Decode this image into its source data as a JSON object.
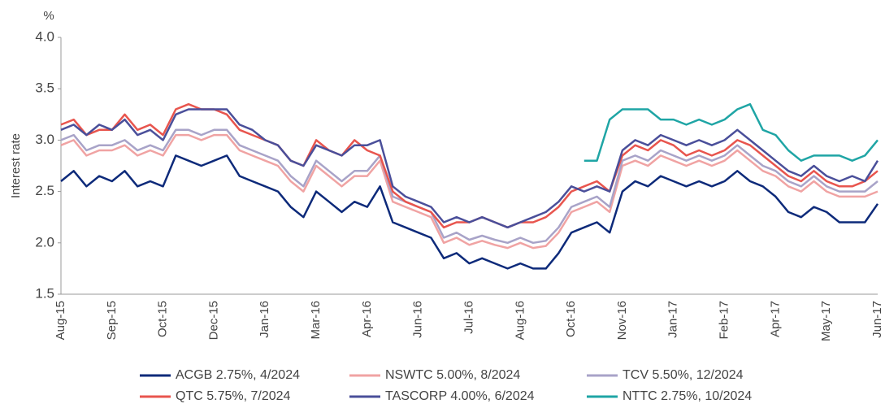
{
  "chart_data": {
    "type": "line",
    "unit": "%",
    "y_label": "Interest rate",
    "categories": [
      "Aug-15",
      null,
      null,
      null,
      "Sep-15",
      null,
      null,
      null,
      "Oct-15",
      null,
      null,
      null,
      "Dec-15",
      null,
      null,
      null,
      "Jan-16",
      null,
      null,
      null,
      "Mar-16",
      null,
      null,
      null,
      "Apr-16",
      null,
      null,
      null,
      "Jun-16",
      null,
      null,
      null,
      "Jul-16",
      null,
      null,
      null,
      "Aug-16",
      null,
      null,
      null,
      "Oct-16",
      null,
      null,
      null,
      "Nov-16",
      null,
      null,
      null,
      "Jan-17",
      null,
      null,
      null,
      "Feb-17",
      null,
      null,
      null,
      "Apr-17",
      null,
      null,
      null,
      "May-17",
      null,
      null,
      null,
      "Jun-17"
    ],
    "ylim": [
      1.5,
      4.0
    ],
    "yticks": [
      1.5,
      {
        "value": 2,
        "label": "2.0"
      },
      2.5,
      {
        "value": 3,
        "label": "3.0"
      },
      3.5,
      {
        "value": 4,
        "label": "4.0"
      }
    ],
    "series": [
      {
        "name": "ACGB 2.75%, 4/2024",
        "color": "#0d2a7a",
        "values": [
          2.6,
          2.7,
          2.55,
          2.65,
          2.6,
          2.7,
          2.55,
          2.6,
          2.55,
          2.85,
          2.8,
          2.75,
          2.8,
          2.85,
          2.65,
          2.6,
          2.55,
          2.5,
          2.35,
          2.25,
          2.5,
          2.4,
          2.3,
          2.4,
          2.35,
          2.55,
          2.2,
          2.15,
          2.1,
          2.05,
          1.85,
          1.9,
          1.8,
          1.85,
          1.8,
          1.75,
          1.8,
          1.75,
          1.75,
          1.9,
          2.1,
          2.15,
          2.2,
          2.1,
          2.5,
          2.6,
          2.55,
          2.65,
          2.6,
          2.55,
          2.6,
          2.55,
          2.6,
          2.7,
          2.6,
          2.55,
          2.45,
          2.3,
          2.25,
          2.35,
          2.3,
          2.2,
          2.2,
          2.2,
          2.38
        ]
      },
      {
        "name": "NSWTC 5.00%, 8/2024",
        "color": "#f0a3a3",
        "values": [
          2.95,
          3.0,
          2.85,
          2.9,
          2.9,
          2.95,
          2.85,
          2.9,
          2.85,
          3.05,
          3.05,
          3.0,
          3.05,
          3.05,
          2.9,
          2.85,
          2.8,
          2.75,
          2.6,
          2.5,
          2.75,
          2.65,
          2.55,
          2.65,
          2.65,
          2.8,
          2.4,
          2.35,
          2.3,
          2.25,
          2.0,
          2.05,
          1.98,
          2.02,
          1.98,
          1.95,
          2.0,
          1.95,
          1.97,
          2.1,
          2.3,
          2.35,
          2.4,
          2.3,
          2.75,
          2.8,
          2.75,
          2.85,
          2.8,
          2.75,
          2.8,
          2.75,
          2.8,
          2.9,
          2.8,
          2.7,
          2.65,
          2.55,
          2.5,
          2.6,
          2.5,
          2.45,
          2.45,
          2.45,
          2.5
        ]
      },
      {
        "name": "TCV 5.50%, 12/2024",
        "color": "#a8a3c8",
        "values": [
          3.0,
          3.05,
          2.9,
          2.95,
          2.95,
          3.0,
          2.9,
          2.95,
          2.9,
          3.1,
          3.1,
          3.05,
          3.1,
          3.1,
          2.95,
          2.9,
          2.85,
          2.8,
          2.65,
          2.55,
          2.8,
          2.7,
          2.6,
          2.7,
          2.7,
          2.85,
          2.45,
          2.4,
          2.35,
          2.3,
          2.05,
          2.1,
          2.03,
          2.07,
          2.03,
          2.0,
          2.05,
          2.0,
          2.02,
          2.15,
          2.35,
          2.4,
          2.45,
          2.35,
          2.8,
          2.85,
          2.8,
          2.9,
          2.85,
          2.8,
          2.85,
          2.8,
          2.85,
          2.95,
          2.85,
          2.75,
          2.7,
          2.6,
          2.55,
          2.65,
          2.55,
          2.5,
          2.5,
          2.5,
          2.6
        ]
      },
      {
        "name": "QTC 5.75%, 7/2024",
        "color": "#e8554e",
        "values": [
          3.15,
          3.2,
          3.05,
          3.1,
          3.1,
          3.25,
          3.1,
          3.15,
          3.05,
          3.3,
          3.35,
          3.3,
          3.3,
          3.25,
          3.1,
          3.05,
          3.0,
          2.95,
          2.8,
          2.75,
          3.0,
          2.9,
          2.85,
          3.0,
          2.9,
          2.85,
          2.5,
          2.4,
          2.35,
          2.3,
          2.15,
          2.2,
          2.2,
          2.25,
          2.2,
          2.15,
          2.2,
          2.2,
          2.25,
          2.35,
          2.5,
          2.55,
          2.6,
          2.5,
          2.85,
          2.95,
          2.9,
          3.0,
          2.95,
          2.85,
          2.9,
          2.85,
          2.9,
          3.0,
          2.95,
          2.85,
          2.75,
          2.65,
          2.6,
          2.7,
          2.6,
          2.55,
          2.55,
          2.6,
          2.7
        ]
      },
      {
        "name": "TASCORP 4.00%, 6/2024",
        "color": "#4a4f9a",
        "values": [
          3.1,
          3.15,
          3.05,
          3.15,
          3.1,
          3.2,
          3.05,
          3.1,
          3.0,
          3.25,
          3.3,
          3.3,
          3.3,
          3.3,
          3.15,
          3.1,
          3.0,
          2.95,
          2.8,
          2.75,
          2.95,
          2.9,
          2.85,
          2.95,
          2.95,
          3.0,
          2.55,
          2.45,
          2.4,
          2.35,
          2.2,
          2.25,
          2.2,
          2.25,
          2.2,
          2.15,
          2.2,
          2.25,
          2.3,
          2.4,
          2.55,
          2.5,
          2.55,
          2.5,
          2.9,
          3.0,
          2.95,
          3.05,
          3.0,
          2.95,
          3.0,
          2.95,
          3.0,
          3.1,
          3.0,
          2.9,
          2.8,
          2.7,
          2.65,
          2.75,
          2.65,
          2.6,
          2.65,
          2.6,
          2.8
        ]
      },
      {
        "name": "NTTC 2.75%, 10/2024",
        "color": "#1fa5a5",
        "values": [
          null,
          null,
          null,
          null,
          null,
          null,
          null,
          null,
          null,
          null,
          null,
          null,
          null,
          null,
          null,
          null,
          null,
          null,
          null,
          null,
          null,
          null,
          null,
          null,
          null,
          null,
          null,
          null,
          null,
          null,
          null,
          null,
          null,
          null,
          null,
          null,
          null,
          null,
          null,
          null,
          null,
          2.8,
          2.8,
          3.2,
          3.3,
          3.3,
          3.3,
          3.2,
          3.2,
          3.15,
          3.2,
          3.15,
          3.2,
          3.3,
          3.35,
          3.1,
          3.05,
          2.9,
          2.8,
          2.85,
          2.85,
          2.85,
          2.8,
          2.85,
          3.0
        ]
      }
    ]
  }
}
